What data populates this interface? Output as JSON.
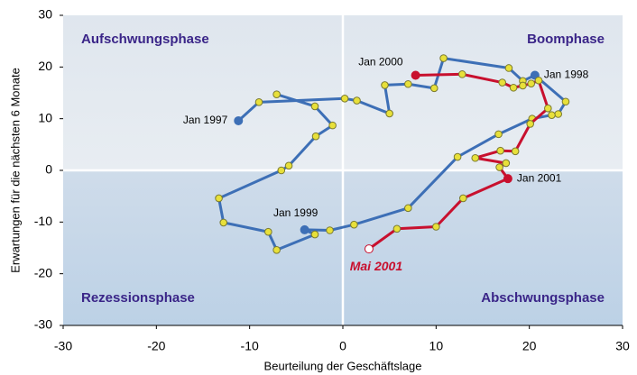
{
  "chart_data": {
    "type": "connected-scatter",
    "xlabel": "Beurteilung der Geschäftslage",
    "ylabel": "Erwartungen für die nächsten 6 Monate",
    "xlim": [
      -30,
      30
    ],
    "xticks": [
      -30,
      -20,
      -10,
      0,
      10,
      20,
      30
    ],
    "ylim": [
      -30,
      30
    ],
    "yticks": [
      -30,
      -20,
      -10,
      0,
      10,
      20,
      30
    ],
    "quadrant_labels": [
      "Aufschwungsphase",
      "Boomphase",
      "Rezessionsphase",
      "Abschwungsphase"
    ],
    "series": [
      {
        "color": "#3d6fb6",
        "x": [
          -11.2,
          -9.0,
          0.2,
          1.5,
          5.0,
          4.5,
          7.0,
          9.8,
          10.8,
          17.8,
          19.3,
          20.6,
          23.9,
          23.1,
          22.4,
          20.3,
          16.7,
          12.3,
          7.0,
          1.2,
          -1.4,
          -4.1,
          -3.0,
          -7.1,
          -8.0,
          -12.8,
          -13.3,
          -6.6,
          -5.8,
          -2.9,
          -1.1,
          -3.0,
          -7.1
        ],
        "values": [
          9.6,
          13.2,
          13.9,
          13.5,
          11.0,
          16.5,
          16.7,
          15.9,
          21.7,
          19.8,
          17.3,
          18.4,
          13.3,
          10.9,
          10.7,
          10.0,
          7.0,
          2.6,
          -7.3,
          -10.5,
          -11.6,
          -11.5,
          -12.4,
          -15.4,
          -11.9,
          -10.1,
          -5.4,
          0.0,
          0.9,
          6.6,
          8.7,
          12.4,
          14.7
        ],
        "labels": [
          "Jan 1997",
          null,
          null,
          null,
          null,
          null,
          null,
          null,
          null,
          null,
          null,
          "Jan 1998",
          null,
          null,
          null,
          null,
          null,
          null,
          null,
          null,
          null,
          "Jan 1999",
          null,
          null,
          null,
          null,
          null,
          null,
          null,
          null,
          null,
          null,
          null
        ]
      },
      {
        "color": "#c8102e",
        "x": [
          7.8,
          12.8,
          17.1,
          18.3,
          19.3,
          20.2,
          21.0,
          22.0,
          20.1,
          18.5,
          16.9,
          14.2,
          17.5,
          16.8,
          17.7,
          12.9,
          10.0,
          5.8,
          2.8
        ],
        "values": [
          18.4,
          18.6,
          17.0,
          16.0,
          16.4,
          16.8,
          17.4,
          12.0,
          9.0,
          3.7,
          3.8,
          2.4,
          1.4,
          0.6,
          -1.6,
          -5.4,
          -10.9,
          -11.3,
          -15.2
        ],
        "labels": [
          "Jan 2000",
          null,
          null,
          null,
          null,
          null,
          null,
          null,
          null,
          null,
          null,
          null,
          null,
          null,
          "Jan 2001",
          null,
          null,
          null,
          "Mai 2001"
        ]
      }
    ]
  }
}
